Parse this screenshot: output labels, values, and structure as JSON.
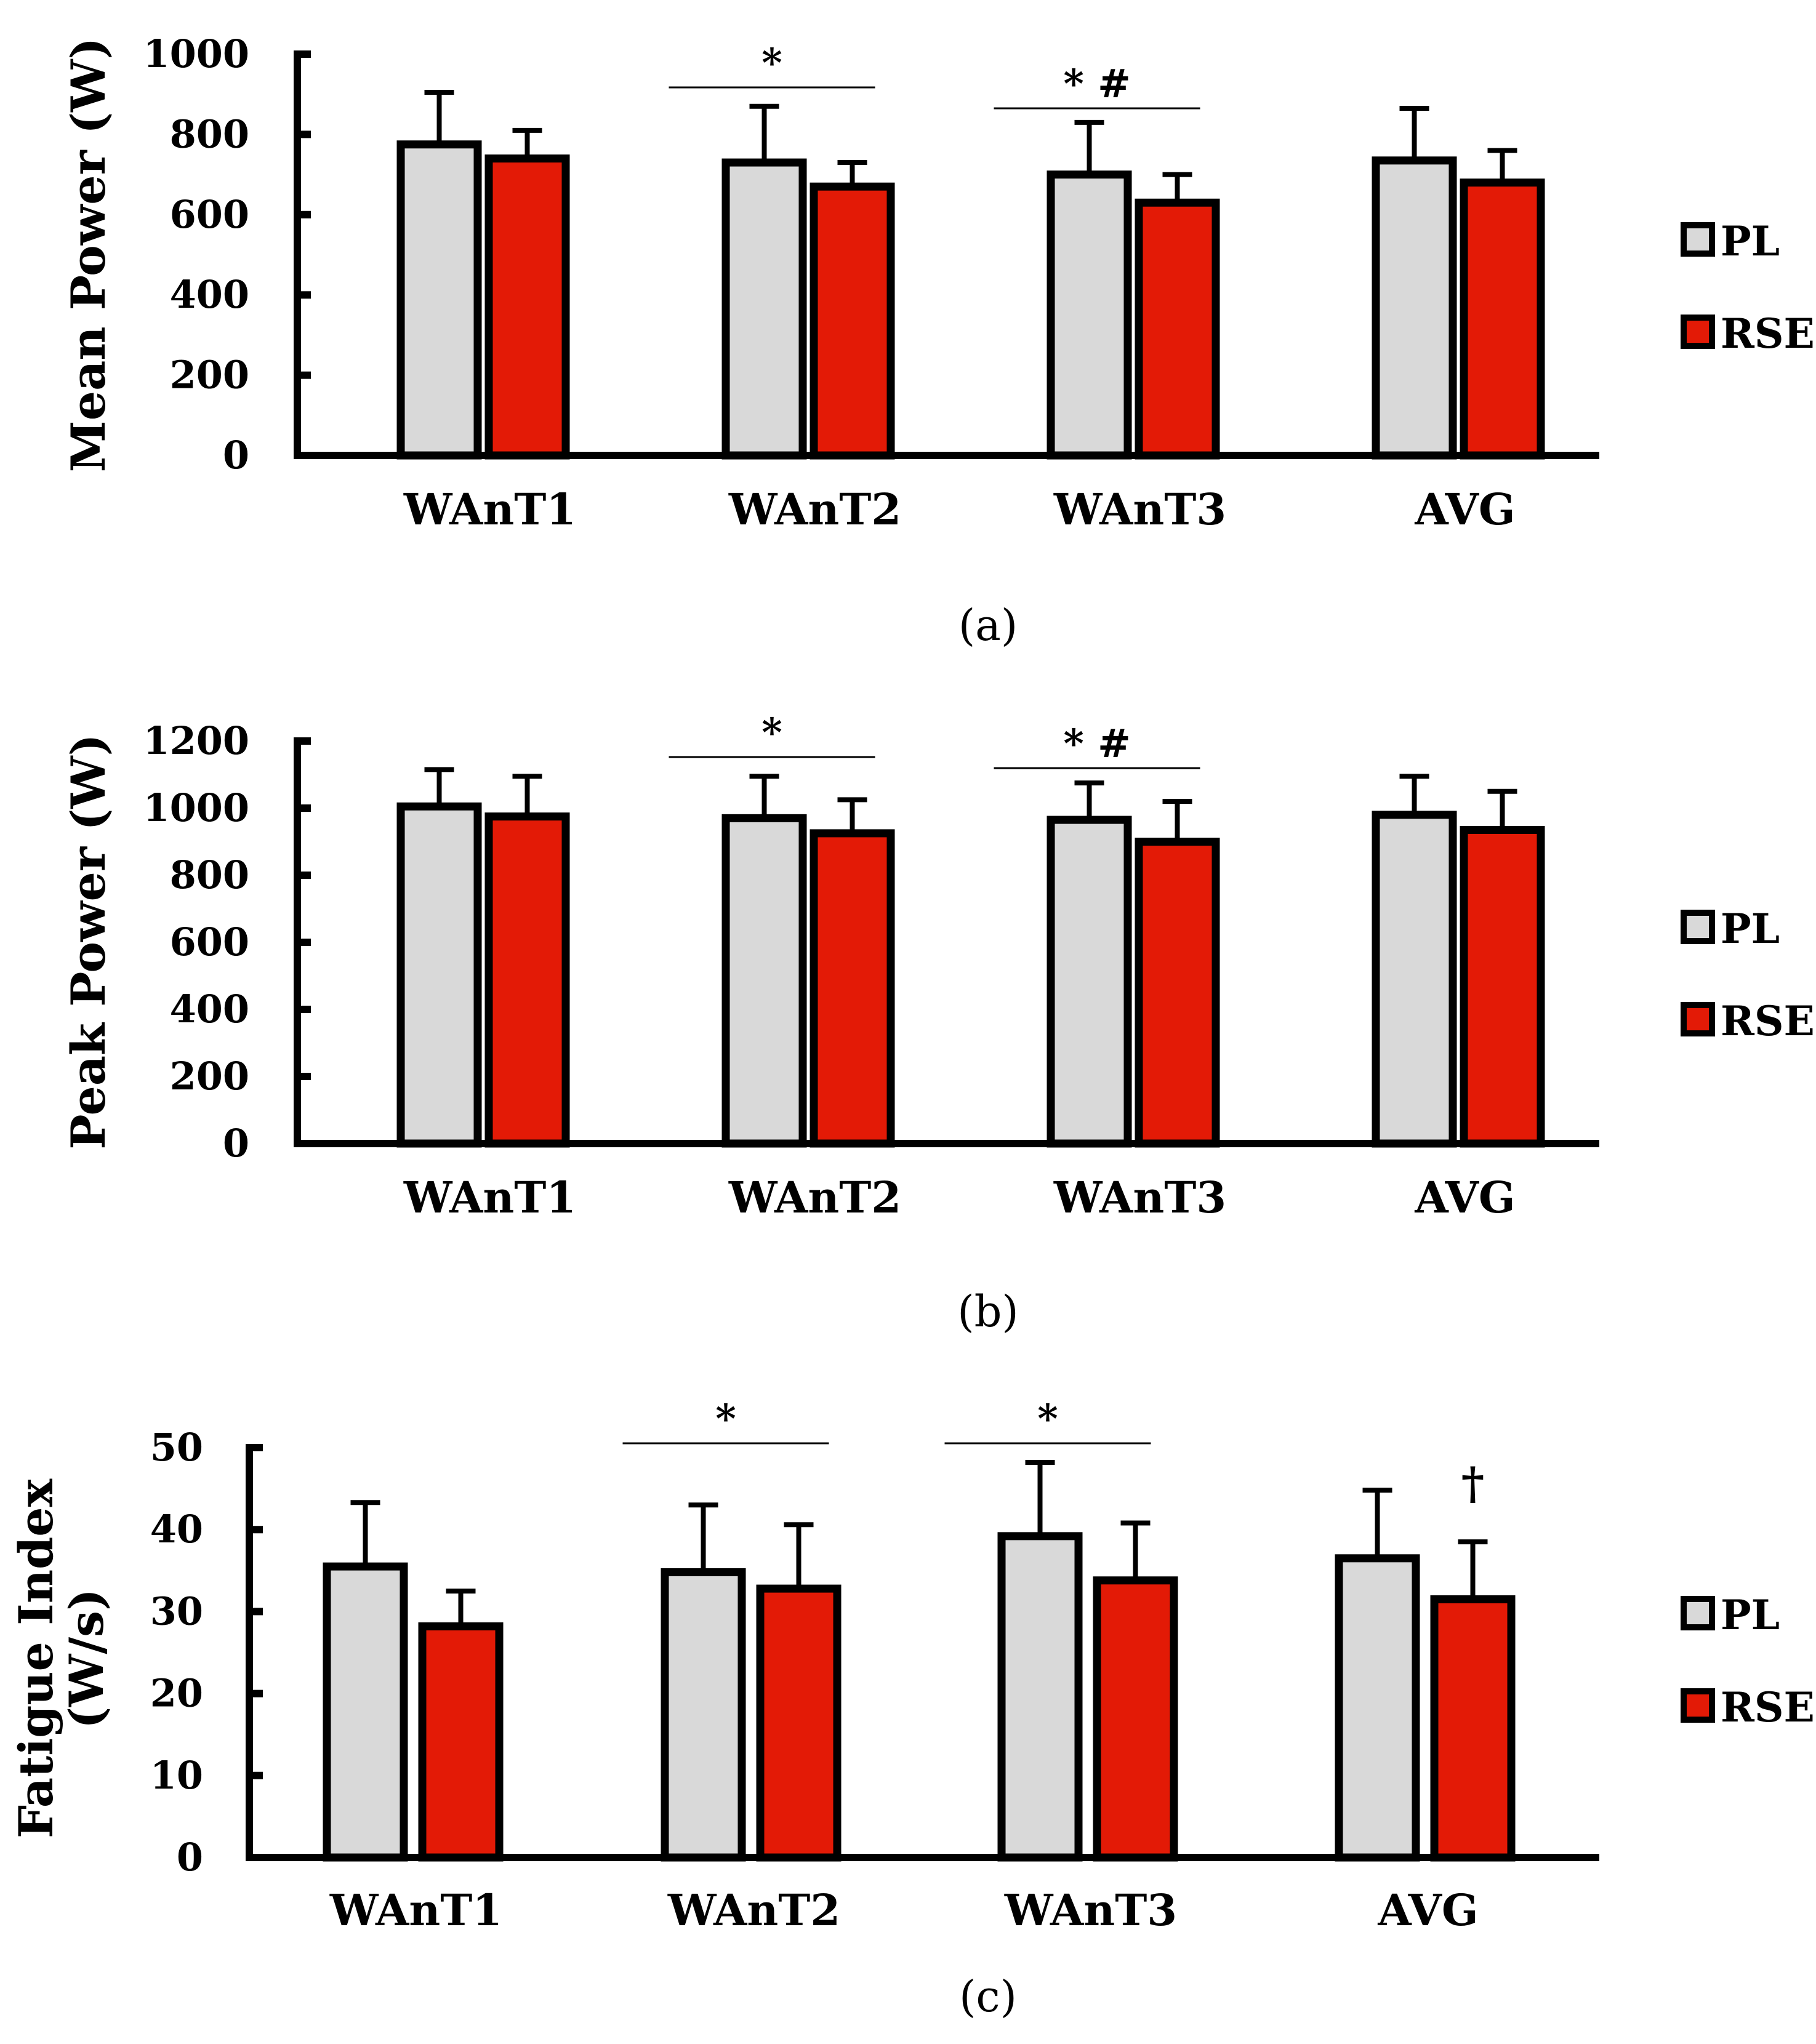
{
  "colors": {
    "pl": "#d9d9d9",
    "rse": "#e31a06",
    "stroke": "#000000"
  },
  "chart_data": [
    {
      "type": "bar",
      "panel_label": "a",
      "caption_open": "(",
      "caption_close": ")",
      "ylabel_lines": [
        "Mean Power (W)"
      ],
      "categories": [
        "WAnT1",
        "WAnT2",
        "WAnT3",
        "AVG"
      ],
      "ylim": [
        0,
        1000
      ],
      "yticks": [
        "0",
        "200",
        "400",
        "600",
        "800",
        "1000"
      ],
      "series": [
        {
          "name": "PL",
          "values": [
            775,
            730,
            700,
            735
          ],
          "errors": [
            130,
            140,
            130,
            130
          ]
        },
        {
          "name": "RSE",
          "values": [
            740,
            670,
            630,
            680
          ],
          "errors": [
            70,
            60,
            70,
            80
          ]
        }
      ],
      "significance": [
        {
          "category_index": 1,
          "text": "*"
        },
        {
          "category_index": 2,
          "text": "*  #"
        }
      ],
      "point_marks": [],
      "legend": [
        "PL",
        "RSE"
      ],
      "legend_position": "right"
    },
    {
      "type": "bar",
      "panel_label": "b",
      "caption_open": "(",
      "caption_close": ")",
      "ylabel_lines": [
        "Peak Power (W)"
      ],
      "categories": [
        "WAnT1",
        "WAnT2",
        "WAnT3",
        "AVG"
      ],
      "ylim": [
        0,
        1200
      ],
      "yticks": [
        "0",
        "200",
        "400",
        "600",
        "800",
        "1000",
        "1200"
      ],
      "series": [
        {
          "name": "PL",
          "values": [
            1005,
            970,
            965,
            980
          ],
          "errors": [
            110,
            125,
            110,
            115
          ]
        },
        {
          "name": "RSE",
          "values": [
            975,
            925,
            900,
            935
          ],
          "errors": [
            120,
            100,
            120,
            115
          ]
        }
      ],
      "significance": [
        {
          "category_index": 1,
          "text": "*"
        },
        {
          "category_index": 2,
          "text": "*  #"
        }
      ],
      "point_marks": [],
      "legend": [
        "PL",
        "RSE"
      ],
      "legend_position": "right"
    },
    {
      "type": "bar",
      "panel_label": "c",
      "caption_open": "(",
      "caption_close": ")",
      "ylabel_lines": [
        "Fatigue Index",
        "(W/s)"
      ],
      "categories": [
        "WAnT1",
        "WAnT2",
        "WAnT3",
        "AVG"
      ],
      "ylim": [
        0,
        50
      ],
      "yticks": [
        "0",
        "10",
        "20",
        "30",
        "40",
        "50"
      ],
      "series": [
        {
          "name": "PL",
          "values": [
            35.5,
            34.8,
            39.2,
            36.5
          ],
          "errors": [
            7.8,
            8.2,
            9.0,
            8.3
          ]
        },
        {
          "name": "RSE",
          "values": [
            28.2,
            32.8,
            33.8,
            31.5
          ],
          "errors": [
            4.3,
            7.8,
            7.0,
            7.0
          ]
        }
      ],
      "significance": [
        {
          "category_index": 1,
          "text": "*"
        },
        {
          "category_index": 2,
          "text": "*"
        }
      ],
      "point_marks": [
        {
          "category_index": 3,
          "series_index": 1,
          "text": "†"
        }
      ],
      "legend": [
        "PL",
        "RSE"
      ],
      "legend_position": "right"
    }
  ]
}
